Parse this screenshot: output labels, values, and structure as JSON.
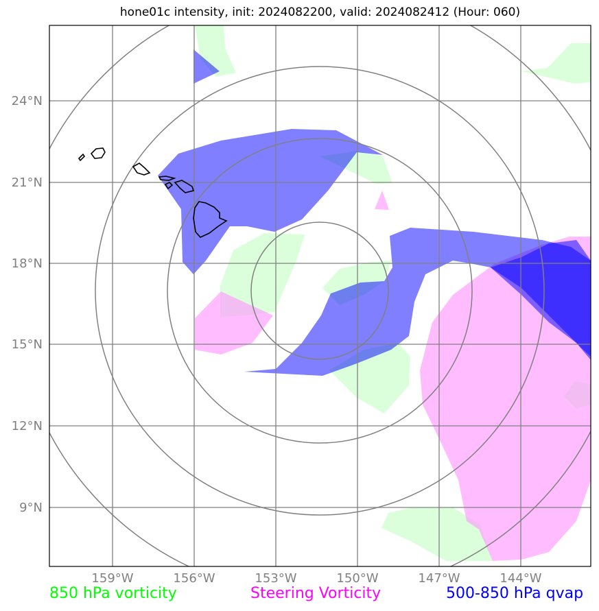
{
  "title": "hone01c intensity, init: 2024082200, valid: 2024082412 (Hour: 060)",
  "lat_labels": [
    "24°N",
    "21°N",
    "18°N",
    "15°N",
    "12°N",
    "9°N"
  ],
  "lon_labels": [
    "159°W",
    "156°W",
    "153°W",
    "150°W",
    "147°W",
    "144°W"
  ],
  "legend": {
    "green": "850 hPa vorticity",
    "magenta": "Steering Vorticity",
    "blue": "500-850 hPa qvap"
  },
  "colors": {
    "vorticity_850": "#00ff00",
    "steering_vorticity": "#ff00ff",
    "qvap_500_850": "#0000ff",
    "grid": "#808080"
  }
}
